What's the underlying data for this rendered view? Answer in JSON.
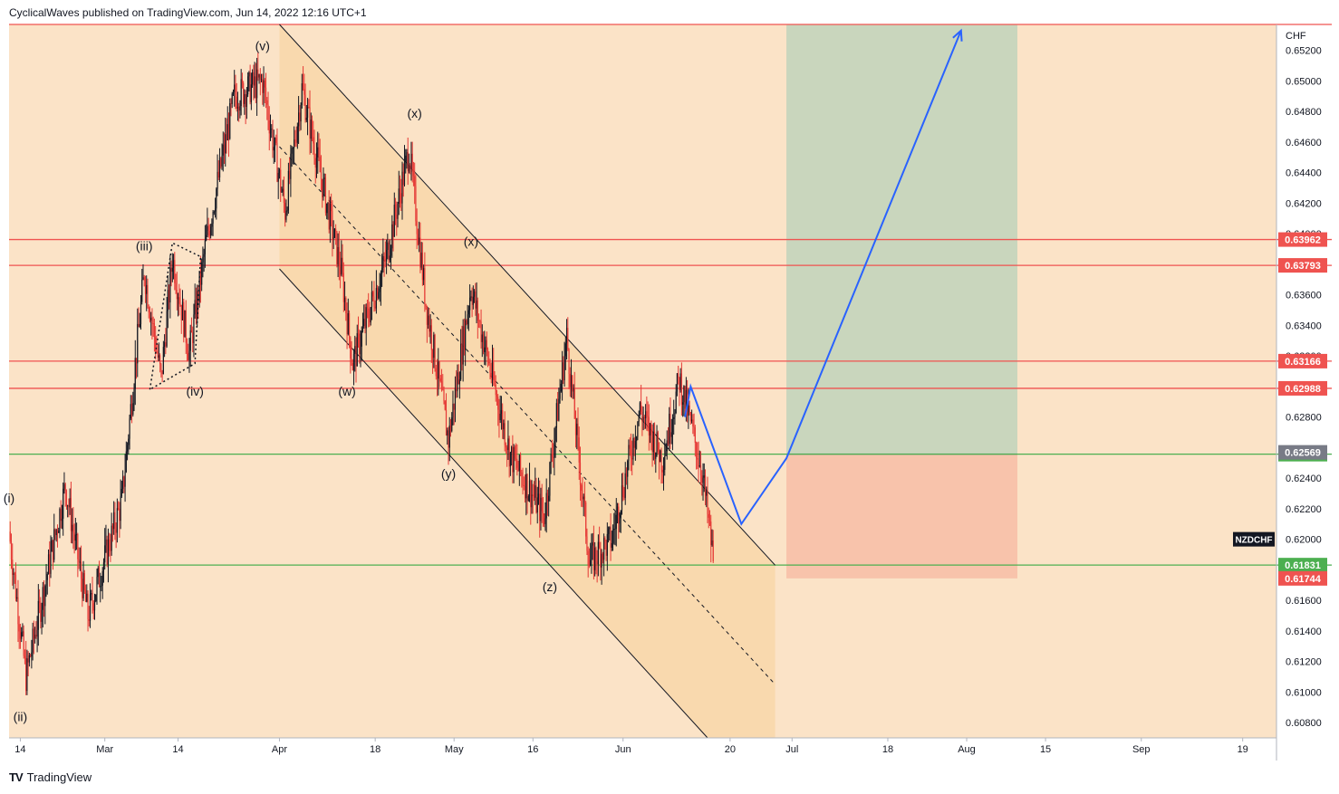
{
  "header": {
    "title": "CyclicalWaves published on TradingView.com, Jun 14, 2022 12:16 UTC+1"
  },
  "footer": {
    "brand": "TradingView",
    "logo": "TV"
  },
  "colors": {
    "background": "#fbe3c7",
    "channel": "#f9d9ae",
    "up": "#131722",
    "down": "#e53935",
    "resistance": "#ef5350",
    "support": "#4caf50",
    "target": "#c9d6bd",
    "stop": "#f8c3ab",
    "arrow": "#2962ff"
  },
  "chart_data": {
    "type": "candlestick",
    "symbol": "NZDCHF",
    "currency": "CHF",
    "xlim": [
      "2022-02-12",
      "2022-09-25"
    ],
    "ylim": [
      0.607,
      0.6537
    ],
    "y_ticks": [
      "0.65200",
      "0.65000",
      "0.64800",
      "0.64600",
      "0.64400",
      "0.64200",
      "0.64000",
      "0.63800",
      "0.63600",
      "0.63400",
      "0.63200",
      "0.62800",
      "0.62400",
      "0.62200",
      "0.62000",
      "0.61600",
      "0.61400",
      "0.61200",
      "0.61000",
      "0.60800"
    ],
    "x_ticks": [
      {
        "label": "14",
        "date": "2022-02-14"
      },
      {
        "label": "Mar",
        "date": "2022-03-01"
      },
      {
        "label": "14",
        "date": "2022-03-14"
      },
      {
        "label": "Apr",
        "date": "2022-04-01"
      },
      {
        "label": "18",
        "date": "2022-04-18"
      },
      {
        "label": "May",
        "date": "2022-05-02"
      },
      {
        "label": "16",
        "date": "2022-05-16"
      },
      {
        "label": "Jun",
        "date": "2022-06-01"
      },
      {
        "label": "20",
        "date": "2022-06-20"
      },
      {
        "label": "Jul",
        "date": "2022-07-01"
      },
      {
        "label": "18",
        "date": "2022-07-18"
      },
      {
        "label": "Aug",
        "date": "2022-08-01"
      },
      {
        "label": "15",
        "date": "2022-08-15"
      },
      {
        "label": "Sep",
        "date": "2022-09-01"
      },
      {
        "label": "19",
        "date": "2022-09-19"
      }
    ],
    "price_path": [
      {
        "date": "2022-02-12",
        "close": 0.6205
      },
      {
        "date": "2022-02-15",
        "close": 0.611
      },
      {
        "date": "2022-02-22",
        "close": 0.6235
      },
      {
        "date": "2022-02-26",
        "close": 0.615
      },
      {
        "date": "2022-03-04",
        "close": 0.6225
      },
      {
        "date": "2022-03-08",
        "close": 0.6375
      },
      {
        "date": "2022-03-11",
        "close": 0.6305
      },
      {
        "date": "2022-03-13",
        "close": 0.6385
      },
      {
        "date": "2022-03-16",
        "close": 0.6322
      },
      {
        "date": "2022-03-19",
        "close": 0.6395
      },
      {
        "date": "2022-03-24",
        "close": 0.649
      },
      {
        "date": "2022-03-29",
        "close": 0.65
      },
      {
        "date": "2022-04-02",
        "close": 0.6415
      },
      {
        "date": "2022-04-05",
        "close": 0.6495
      },
      {
        "date": "2022-04-12",
        "close": 0.6375
      },
      {
        "date": "2022-04-14",
        "close": 0.6315
      },
      {
        "date": "2022-04-20",
        "close": 0.6385
      },
      {
        "date": "2022-04-24",
        "close": 0.6455
      },
      {
        "date": "2022-04-27",
        "close": 0.6355
      },
      {
        "date": "2022-05-01",
        "close": 0.6265
      },
      {
        "date": "2022-05-05",
        "close": 0.6365
      },
      {
        "date": "2022-05-12",
        "close": 0.6255
      },
      {
        "date": "2022-05-18",
        "close": 0.6215
      },
      {
        "date": "2022-05-22",
        "close": 0.6332
      },
      {
        "date": "2022-05-26",
        "close": 0.6185
      },
      {
        "date": "2022-05-30",
        "close": 0.62
      },
      {
        "date": "2022-06-04",
        "close": 0.6285
      },
      {
        "date": "2022-06-08",
        "close": 0.6252
      },
      {
        "date": "2022-06-11",
        "close": 0.6305
      },
      {
        "date": "2022-06-15",
        "close": 0.6245
      },
      {
        "date": "2022-06-17",
        "close": 0.6187
      }
    ],
    "horizontal_lines": [
      {
        "value": 0.6537,
        "color": "resistance",
        "label": ""
      },
      {
        "value": 0.63962,
        "color": "resistance",
        "label": "0.63962"
      },
      {
        "value": 0.63793,
        "color": "resistance",
        "label": "0.63793"
      },
      {
        "value": 0.63166,
        "color": "resistance",
        "label": "0.63166"
      },
      {
        "value": 0.62988,
        "color": "resistance",
        "label": "0.62988"
      },
      {
        "value": 0.62557,
        "color": "support",
        "label": "0.62557"
      },
      {
        "value": 0.61831,
        "color": "support",
        "label": "0.61831"
      }
    ],
    "price_labels": [
      {
        "text": "0.62569",
        "value": 0.62569,
        "bg": "#787b86"
      },
      {
        "text": "0.61744",
        "value": 0.61744,
        "bg": "#ef5350"
      }
    ],
    "channel": {
      "upper": [
        {
          "date": "2022-04-01",
          "value": 0.6537
        },
        {
          "date": "2022-06-28",
          "value": 0.6183
        }
      ],
      "lower": [
        {
          "date": "2022-04-01",
          "value": 0.6377
        },
        {
          "date": "2022-06-16",
          "value": 0.607
        }
      ],
      "mid": [
        {
          "date": "2022-04-01",
          "value": 0.6457
        },
        {
          "date": "2022-06-28",
          "value": 0.6105
        }
      ],
      "shade_end": "2022-06-28"
    },
    "triangle": [
      {
        "date": "2022-03-09",
        "value": 0.6298
      },
      {
        "date": "2022-03-13",
        "value": 0.6394
      },
      {
        "date": "2022-03-18",
        "value": 0.6385
      },
      {
        "date": "2022-03-17",
        "value": 0.6315
      }
    ],
    "position": {
      "start": "2022-06-30",
      "end": "2022-08-10",
      "target": 0.6537,
      "entry": 0.62557,
      "stop": 0.61744
    },
    "projection": [
      {
        "date": "2022-06-12",
        "value": 0.628
      },
      {
        "date": "2022-06-13",
        "value": 0.63
      },
      {
        "date": "2022-06-22",
        "value": 0.621
      },
      {
        "date": "2022-06-30",
        "value": 0.6253
      },
      {
        "date": "2022-07-31",
        "value": 0.6533
      }
    ],
    "wave_labels": [
      {
        "text": "(i)",
        "date": "2022-02-12",
        "value": 0.6224
      },
      {
        "text": "(ii)",
        "date": "2022-02-14",
        "value": 0.6081
      },
      {
        "text": "(iii)",
        "date": "2022-03-08",
        "value": 0.6389
      },
      {
        "text": "(iv)",
        "date": "2022-03-17",
        "value": 0.6294
      },
      {
        "text": "(v)",
        "date": "2022-03-29",
        "value": 0.652
      },
      {
        "text": "(w)",
        "date": "2022-04-13",
        "value": 0.6294
      },
      {
        "text": "(x)",
        "date": "2022-04-25",
        "value": 0.6476
      },
      {
        "text": "(x)",
        "date": "2022-05-05",
        "value": 0.6392
      },
      {
        "text": "(y)",
        "date": "2022-05-01",
        "value": 0.624
      },
      {
        "text": "(z)",
        "date": "2022-05-19",
        "value": 0.6166
      }
    ]
  }
}
